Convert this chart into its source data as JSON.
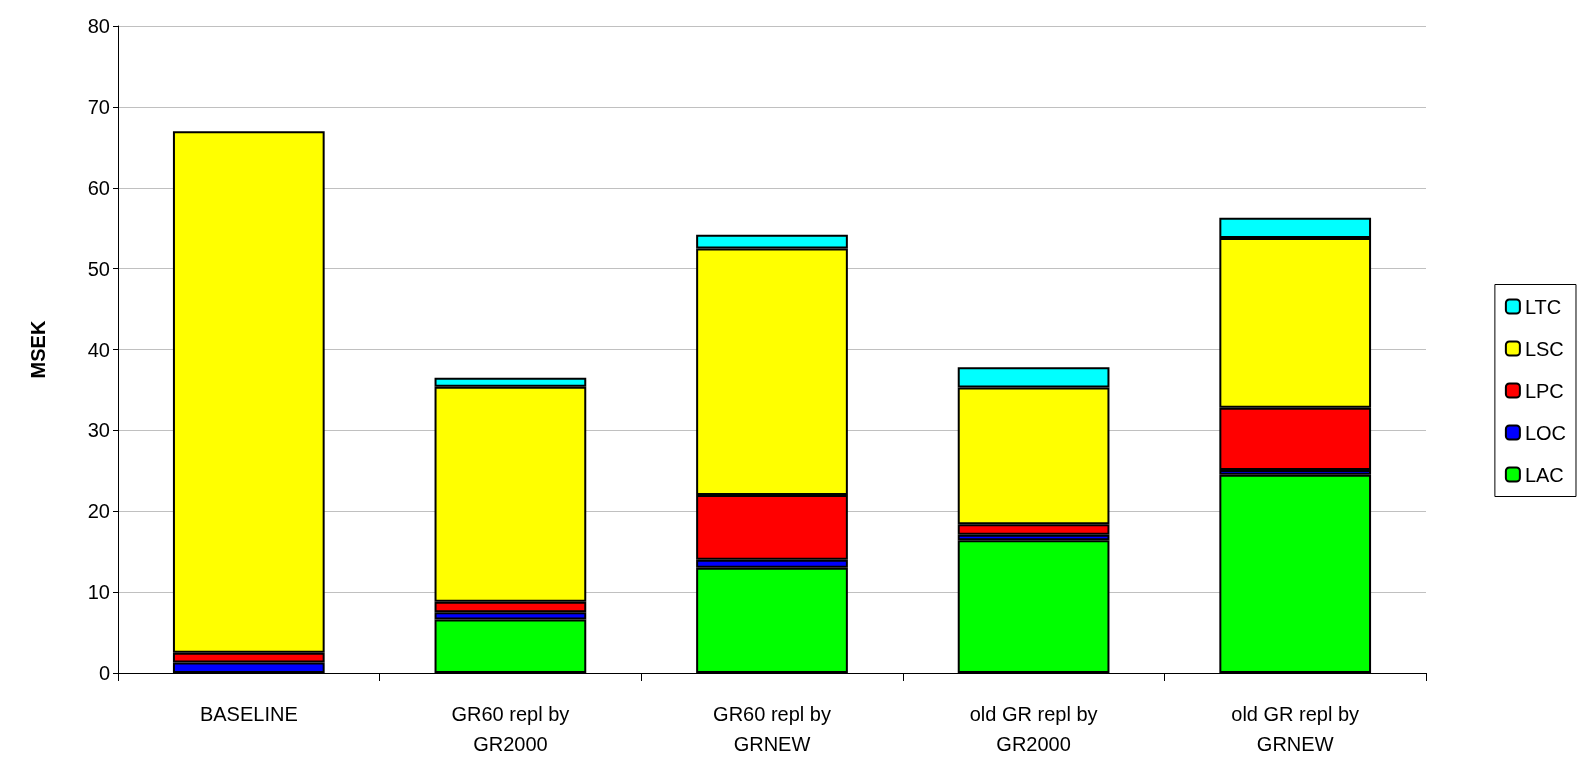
{
  "chart_data": {
    "type": "bar",
    "stacked": true,
    "ylabel": "MSEK",
    "categories": [
      "BASELINE",
      "GR60 repl by\nGR2000",
      "GR60 repl by\nGRNEW",
      "old GR repl by\nGR2000",
      "old GR repl by\nGRNEW"
    ],
    "series": [
      {
        "name": "LAC",
        "color": "#00ff00",
        "values": [
          0,
          6.6,
          13,
          16.4,
          24.5
        ]
      },
      {
        "name": "LOC",
        "color": "#0000ff",
        "values": [
          1.3,
          0.9,
          1,
          0.7,
          0.6
        ]
      },
      {
        "name": "LPC",
        "color": "#ff0000",
        "values": [
          1.2,
          1.3,
          8,
          1.3,
          7.7
        ]
      },
      {
        "name": "LSC",
        "color": "#ffff00",
        "values": [
          64.5,
          26.6,
          30.5,
          16.9,
          21
        ]
      },
      {
        "name": "LTC",
        "color": "#00ffff",
        "values": [
          0,
          1.1,
          1.7,
          2.5,
          2.5
        ]
      }
    ],
    "ylim": [
      0,
      80
    ],
    "yticks": [
      0,
      10,
      20,
      30,
      40,
      50,
      60,
      70,
      80
    ],
    "grid": "y",
    "legend": "right"
  }
}
